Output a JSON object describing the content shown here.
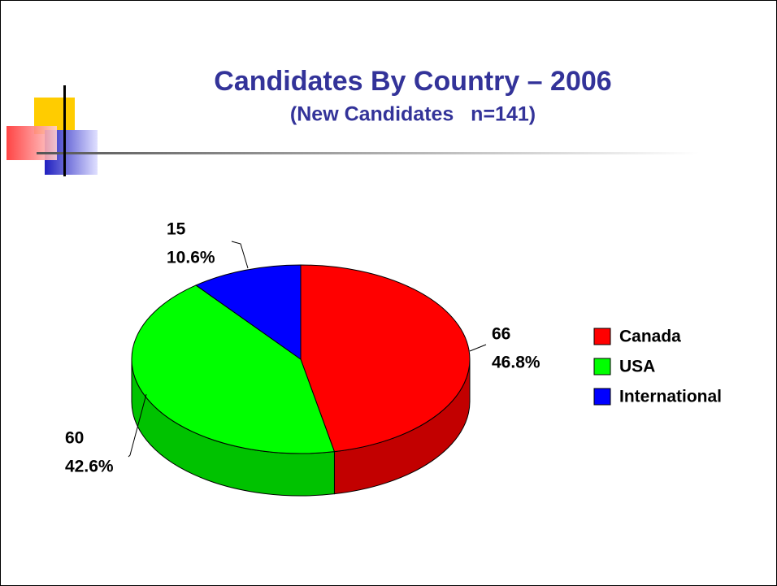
{
  "chart_data": {
    "type": "pie",
    "title": "Candidates By Country – 2006",
    "subtitle": "(New Candidates   n=141)",
    "categories": [
      "Canada",
      "USA",
      "International"
    ],
    "values": [
      66,
      60,
      15
    ],
    "percentages": [
      46.8,
      42.6,
      10.6
    ],
    "percentage_labels": [
      "46.8%",
      "42.6%",
      "10.6%"
    ],
    "colors": [
      "#ff0000",
      "#00ff00",
      "#0000ff"
    ],
    "legend": "right"
  }
}
